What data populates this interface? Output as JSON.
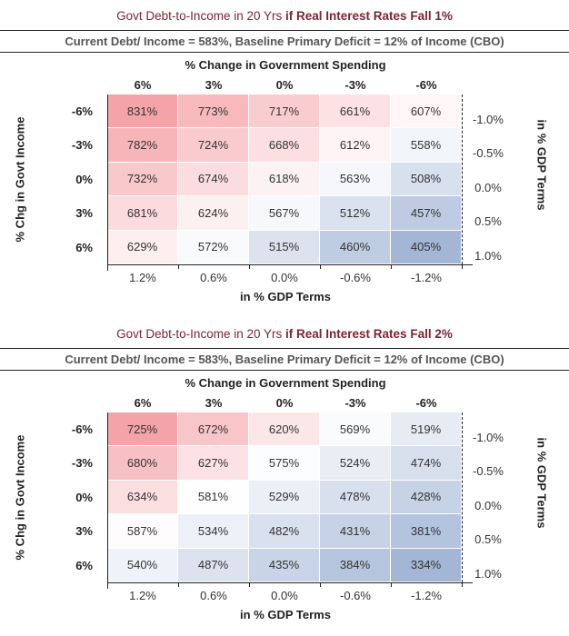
{
  "chart_data": [
    {
      "type": "heatmap",
      "title_normal": "Govt Debt-to-Income in 20 Yrs",
      "title_bold": "if Real Interest Rates Fall 1%",
      "subtitle": "Current Debt/ Income = 583%, Baseline Primary Deficit = 12% of Income (CBO)",
      "top_axis_label": "% Change in Government Spending",
      "columns": [
        "6%",
        "3%",
        "0%",
        "-3%",
        "-6%"
      ],
      "bottom_axis_label": "in % GDP Terms",
      "bottom_ticks": [
        "1.2%",
        "0.6%",
        "0.0%",
        "-0.6%",
        "-1.2%"
      ],
      "left_axis_label": "% Chg in Govt Income",
      "rows": [
        "-6%",
        "-3%",
        "0%",
        "3%",
        "6%"
      ],
      "right_axis_label": "in % GDP Terms",
      "right_ticks": [
        "-1.0%",
        "-0.5%",
        "0.0%",
        "0.5%",
        "1.0%"
      ],
      "values": [
        [
          831,
          773,
          717,
          661,
          607
        ],
        [
          782,
          724,
          668,
          612,
          558
        ],
        [
          732,
          674,
          618,
          563,
          508
        ],
        [
          681,
          624,
          567,
          512,
          457
        ],
        [
          629,
          572,
          515,
          460,
          405
        ]
      ],
      "midpoint": 583,
      "colors": {
        "high": "#f4a3a8",
        "mid": "#ffffff",
        "low": "#a3b6d6",
        "title": "#7b2532"
      }
    },
    {
      "type": "heatmap",
      "title_normal": "Govt Debt-to-Income in 20 Yrs",
      "title_bold": "if Real Interest Rates Fall 2%",
      "subtitle": "Current Debt/ Income = 583%, Baseline Primary Deficit = 12% of Income (CBO)",
      "top_axis_label": "% Change in Government Spending",
      "columns": [
        "6%",
        "3%",
        "0%",
        "-3%",
        "-6%"
      ],
      "bottom_axis_label": "in % GDP Terms",
      "bottom_ticks": [
        "1.2%",
        "0.6%",
        "0.0%",
        "-0.6%",
        "-1.2%"
      ],
      "left_axis_label": "% Chg in Govt Income",
      "rows": [
        "-6%",
        "-3%",
        "0%",
        "3%",
        "6%"
      ],
      "right_axis_label": "in % GDP Terms",
      "right_ticks": [
        "-1.0%",
        "-0.5%",
        "0.0%",
        "0.5%",
        "1.0%"
      ],
      "values": [
        [
          725,
          672,
          620,
          569,
          519
        ],
        [
          680,
          627,
          575,
          524,
          474
        ],
        [
          634,
          581,
          529,
          478,
          428
        ],
        [
          587,
          534,
          482,
          431,
          381
        ],
        [
          540,
          487,
          435,
          384,
          334
        ]
      ],
      "midpoint": 583,
      "colors": {
        "high": "#f4a3a8",
        "mid": "#ffffff",
        "low": "#a3b6d6",
        "title": "#7b2532"
      }
    }
  ]
}
